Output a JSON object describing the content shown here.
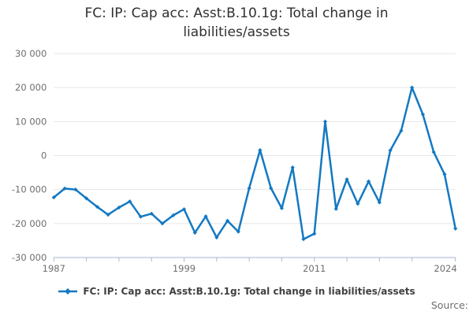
{
  "title": "FC: IP: Cap acc: Asst:B.10.1g: Total change in liabilities/assets",
  "legend": {
    "label": "FC: IP: Cap acc: Asst:B.10.1g: Total change in liabilities/assets"
  },
  "source": {
    "label": "Source:"
  },
  "colors": {
    "line": "#1379C2",
    "grid": "#e6e6e6",
    "axis": "#aab6ce",
    "tick_text": "#6e6e6e",
    "title_text": "#303030",
    "legend_text": "#414042"
  },
  "chart_data": {
    "type": "line",
    "title": "FC: IP: Cap acc: Asst:B.10.1g: Total change in liabilities/assets",
    "xlabel": "",
    "ylabel": "",
    "xlim": [
      1987,
      2024
    ],
    "ylim": [
      -30000,
      30000
    ],
    "grid": true,
    "legend_position": "bottom",
    "marker": "diamond",
    "y_ticks": [
      {
        "value": 30000,
        "label": "30 000"
      },
      {
        "value": 20000,
        "label": "20 000"
      },
      {
        "value": 10000,
        "label": "10 000"
      },
      {
        "value": 0,
        "label": "0"
      },
      {
        "value": -10000,
        "label": "-10 000"
      },
      {
        "value": -20000,
        "label": "-20 000"
      },
      {
        "value": -30000,
        "label": "-30 000"
      }
    ],
    "x_tick_years": [
      1987,
      1990,
      1993,
      1996,
      1999,
      2002,
      2005,
      2008,
      2011,
      2014,
      2017,
      2020,
      2024
    ],
    "x_labels": [
      {
        "year": 1987,
        "text": "1987"
      },
      {
        "year": 1999,
        "text": "1999"
      },
      {
        "year": 2011,
        "text": "2011"
      },
      {
        "year": 2024,
        "text": "2024"
      }
    ],
    "x": [
      1987,
      1988,
      1989,
      1990,
      1991,
      1992,
      1993,
      1994,
      1995,
      1996,
      1997,
      1998,
      1999,
      2000,
      2001,
      2002,
      2003,
      2004,
      2005,
      2006,
      2007,
      2008,
      2009,
      2010,
      2011,
      2012,
      2013,
      2014,
      2015,
      2016,
      2017,
      2018,
      2019,
      2020,
      2021,
      2022,
      2023,
      2024
    ],
    "series": [
      {
        "name": "FC: IP: Cap acc: Asst:B.10.1g: Total change in liabilities/assets",
        "values": [
          -12300,
          -9700,
          -10000,
          -12600,
          -15100,
          -17400,
          -15300,
          -13500,
          -18000,
          -17100,
          -20000,
          -17600,
          -15800,
          -22700,
          -17900,
          -24100,
          -19200,
          -22400,
          -9600,
          1600,
          -9600,
          -15500,
          -3500,
          -24600,
          -23000,
          10000,
          -15700,
          -7000,
          -14200,
          -7600,
          -13800,
          1500,
          7300,
          20000,
          12100,
          1000,
          -5500,
          -21500
        ]
      }
    ]
  }
}
